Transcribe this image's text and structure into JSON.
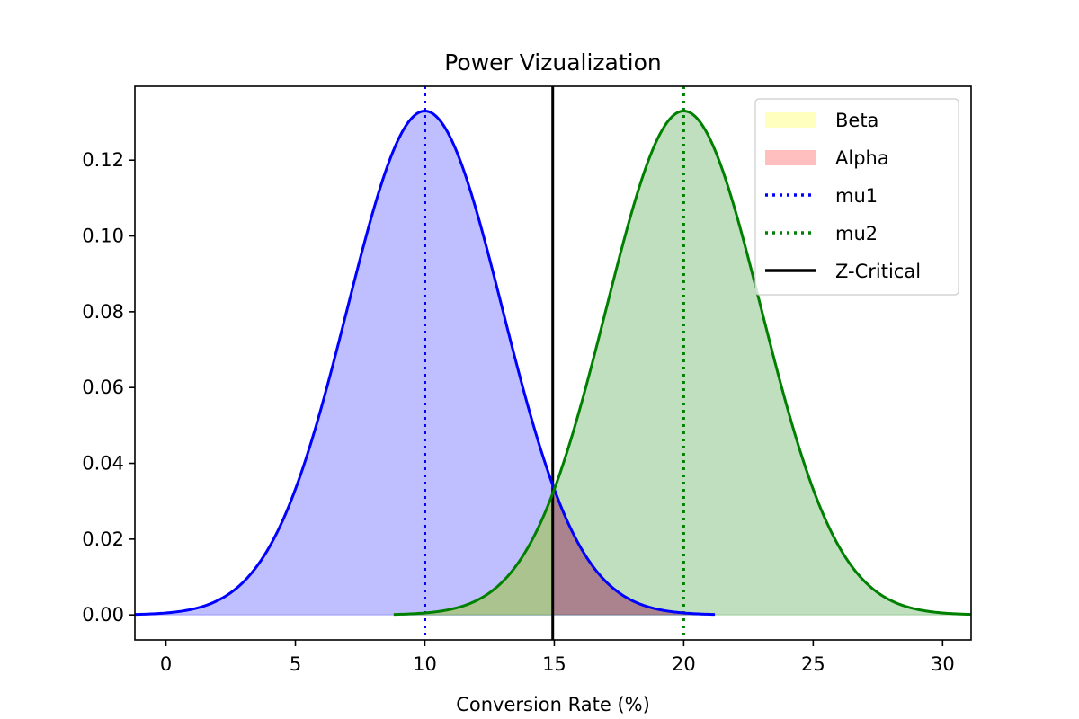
{
  "chart_data": {
    "type": "line",
    "title": "Power Vizualization",
    "xlabel": "Conversion Rate (%)",
    "ylabel": "",
    "xlim": [
      -1.2,
      31.1
    ],
    "ylim": [
      -0.0066,
      0.1395
    ],
    "xticks": [
      0,
      5,
      10,
      15,
      20,
      25,
      30
    ],
    "yticks": [
      0.0,
      0.02,
      0.04,
      0.06,
      0.08,
      0.1,
      0.12
    ],
    "ytick_labels": [
      "0.00",
      "0.02",
      "0.04",
      "0.06",
      "0.08",
      "0.10",
      "0.12"
    ],
    "grid": false,
    "legend_position": "top-right",
    "distributions": [
      {
        "id": "null",
        "mean": 10,
        "sd": 3,
        "x_start": -1.2,
        "x_end": 21.2,
        "line_color": "#0000ff",
        "fill_color": "#0000ff",
        "fill_opacity": 0.25
      },
      {
        "id": "alt",
        "mean": 20,
        "sd": 3,
        "x_start": 8.8,
        "x_end": 31.1,
        "line_color": "#008000",
        "fill_color": "#008000",
        "fill_opacity": 0.25
      }
    ],
    "regions": [
      {
        "name": "Beta",
        "x_from": 8.8,
        "x_to": 14.94,
        "curve": "alt",
        "color": "#ffff00",
        "opacity": 0.25
      },
      {
        "name": "Alpha",
        "x_from": 14.94,
        "x_to": 21.2,
        "curve": "null",
        "color": "#ff0000",
        "opacity": 0.25
      }
    ],
    "vlines": [
      {
        "name": "mu1",
        "x": 10,
        "color": "#0000ff",
        "style": "dotted"
      },
      {
        "name": "mu2",
        "x": 20,
        "color": "#008000",
        "style": "dotted"
      },
      {
        "name": "Z-Critical",
        "x": 14.94,
        "color": "#000000",
        "style": "solid"
      }
    ],
    "legend": [
      {
        "label": "Beta",
        "kind": "patch",
        "color": "#ffff00",
        "opacity": 0.25
      },
      {
        "label": "Alpha",
        "kind": "patch",
        "color": "#ff0000",
        "opacity": 0.25
      },
      {
        "label": "mu1",
        "kind": "dotted",
        "color": "#0000ff"
      },
      {
        "label": "mu2",
        "kind": "dotted",
        "color": "#008000"
      },
      {
        "label": "Z-Critical",
        "kind": "solid",
        "color": "#000000"
      }
    ]
  }
}
